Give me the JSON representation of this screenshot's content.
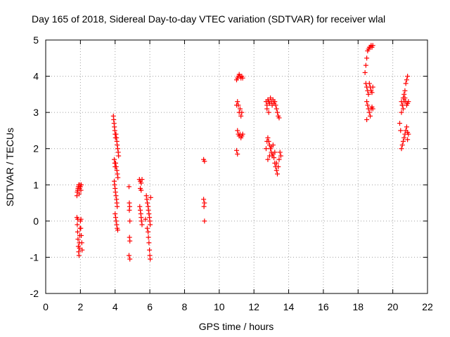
{
  "chart_data": {
    "type": "scatter",
    "title": "Day 165 of 2018, Sidereal Day-to-day VTEC variation (SDTVAR) for receiver wlal",
    "xlabel": "GPS time / hours",
    "ylabel": "SDTVAR / TECUs",
    "xlim": [
      0,
      22
    ],
    "ylim": [
      -2,
      5
    ],
    "xticks": [
      "0",
      "2",
      "4",
      "6",
      "8",
      "10",
      "12",
      "14",
      "16",
      "18",
      "20",
      "22"
    ],
    "yticks": [
      "-2",
      "-1",
      "0",
      "1",
      "2",
      "3",
      "4",
      "5"
    ],
    "grid": true,
    "marker": "+",
    "colors": {
      "points": "#ff0000",
      "grid": "#a0a0a0",
      "axes": "#000000"
    },
    "series": [
      {
        "name": "SDTVAR",
        "points": [
          [
            1.8,
            0.7
          ],
          [
            1.82,
            0.8
          ],
          [
            1.84,
            0.85
          ],
          [
            1.86,
            0.9
          ],
          [
            1.88,
            0.95
          ],
          [
            1.9,
            1.0
          ],
          [
            1.93,
            0.75
          ],
          [
            1.95,
            0.9
          ],
          [
            1.97,
            1.0
          ],
          [
            2.0,
            0.95
          ],
          [
            2.03,
            0.85
          ],
          [
            2.05,
            1.0
          ],
          [
            1.8,
            0.1
          ],
          [
            1.82,
            -0.1
          ],
          [
            1.84,
            -0.3
          ],
          [
            1.86,
            -0.5
          ],
          [
            1.88,
            -0.7
          ],
          [
            1.9,
            -0.85
          ],
          [
            1.92,
            -0.95
          ],
          [
            1.94,
            -0.6
          ],
          [
            1.96,
            -0.4
          ],
          [
            1.98,
            -0.2
          ],
          [
            2.0,
            0.0
          ],
          [
            2.02,
            -0.2
          ],
          [
            2.05,
            -0.4
          ],
          [
            2.08,
            -0.6
          ],
          [
            2.1,
            -0.8
          ],
          [
            1.85,
            0.05
          ],
          [
            1.95,
            -0.75
          ],
          [
            2.03,
            0.05
          ],
          [
            3.9,
            2.9
          ],
          [
            3.92,
            2.8
          ],
          [
            3.94,
            2.7
          ],
          [
            3.96,
            2.6
          ],
          [
            3.98,
            2.5
          ],
          [
            4.0,
            2.4
          ],
          [
            4.02,
            2.3
          ],
          [
            4.05,
            2.4
          ],
          [
            4.08,
            2.3
          ],
          [
            4.1,
            2.2
          ],
          [
            4.12,
            2.1
          ],
          [
            4.15,
            2.0
          ],
          [
            4.18,
            1.9
          ],
          [
            4.2,
            1.8
          ],
          [
            3.95,
            1.7
          ],
          [
            3.98,
            1.6
          ],
          [
            4.0,
            1.5
          ],
          [
            4.03,
            1.6
          ],
          [
            4.06,
            1.5
          ],
          [
            4.1,
            1.4
          ],
          [
            4.13,
            1.3
          ],
          [
            4.16,
            1.2
          ],
          [
            3.95,
            1.1
          ],
          [
            3.97,
            1.0
          ],
          [
            4.0,
            0.9
          ],
          [
            4.02,
            0.8
          ],
          [
            4.05,
            0.7
          ],
          [
            4.08,
            0.6
          ],
          [
            4.1,
            0.5
          ],
          [
            4.12,
            0.4
          ],
          [
            4.0,
            0.2
          ],
          [
            4.03,
            0.1
          ],
          [
            4.06,
            0.0
          ],
          [
            4.09,
            -0.1
          ],
          [
            4.12,
            -0.2
          ],
          [
            4.15,
            -0.25
          ],
          [
            4.8,
            0.95
          ],
          [
            4.82,
            0.5
          ],
          [
            4.84,
            0.4
          ],
          [
            4.82,
            0.3
          ],
          [
            4.85,
            0.0
          ],
          [
            4.83,
            -0.45
          ],
          [
            4.85,
            -0.55
          ],
          [
            4.8,
            -0.95
          ],
          [
            4.85,
            -1.05
          ],
          [
            5.4,
            1.15
          ],
          [
            5.45,
            1.1
          ],
          [
            5.5,
            1.05
          ],
          [
            5.55,
            1.15
          ],
          [
            5.45,
            0.9
          ],
          [
            5.5,
            0.85
          ],
          [
            5.42,
            0.4
          ],
          [
            5.45,
            0.3
          ],
          [
            5.48,
            0.2
          ],
          [
            5.5,
            0.1
          ],
          [
            5.52,
            0.0
          ],
          [
            5.55,
            -0.1
          ],
          [
            5.8,
            0.7
          ],
          [
            5.83,
            0.6
          ],
          [
            5.86,
            0.5
          ],
          [
            5.9,
            0.4
          ],
          [
            5.92,
            0.3
          ],
          [
            5.95,
            0.2
          ],
          [
            5.98,
            0.1
          ],
          [
            6.0,
            0.0
          ],
          [
            6.02,
            -0.1
          ],
          [
            5.85,
            -0.2
          ],
          [
            5.9,
            -0.3
          ],
          [
            5.92,
            -0.45
          ],
          [
            5.95,
            -0.6
          ],
          [
            5.98,
            -0.8
          ],
          [
            6.0,
            -0.95
          ],
          [
            6.02,
            -1.05
          ],
          [
            6.05,
            0.65
          ],
          [
            5.75,
            0.05
          ],
          [
            9.1,
            1.7
          ],
          [
            9.15,
            1.65
          ],
          [
            9.1,
            0.6
          ],
          [
            9.15,
            0.5
          ],
          [
            9.12,
            0.4
          ],
          [
            9.15,
            0.0
          ],
          [
            11.0,
            3.9
          ],
          [
            11.05,
            3.95
          ],
          [
            11.1,
            4.0
          ],
          [
            11.15,
            4.05
          ],
          [
            11.2,
            4.0
          ],
          [
            11.25,
            3.95
          ],
          [
            11.3,
            4.0
          ],
          [
            11.35,
            3.95
          ],
          [
            11.0,
            3.2
          ],
          [
            11.05,
            3.3
          ],
          [
            11.1,
            3.2
          ],
          [
            11.15,
            3.0
          ],
          [
            11.2,
            3.1
          ],
          [
            11.25,
            2.9
          ],
          [
            11.3,
            3.0
          ],
          [
            11.05,
            2.5
          ],
          [
            11.1,
            2.4
          ],
          [
            11.15,
            2.35
          ],
          [
            11.2,
            2.4
          ],
          [
            11.25,
            2.3
          ],
          [
            11.3,
            2.35
          ],
          [
            11.35,
            2.4
          ],
          [
            11.0,
            1.95
          ],
          [
            11.05,
            1.85
          ],
          [
            12.7,
            3.3
          ],
          [
            12.75,
            3.2
          ],
          [
            12.8,
            3.35
          ],
          [
            12.85,
            3.3
          ],
          [
            12.9,
            3.25
          ],
          [
            12.95,
            3.4
          ],
          [
            13.0,
            3.3
          ],
          [
            13.05,
            3.2
          ],
          [
            13.1,
            3.35
          ],
          [
            13.15,
            3.25
          ],
          [
            13.2,
            3.3
          ],
          [
            13.25,
            3.2
          ],
          [
            13.3,
            3.1
          ],
          [
            13.35,
            3.0
          ],
          [
            13.4,
            2.9
          ],
          [
            13.45,
            2.85
          ],
          [
            12.75,
            3.1
          ],
          [
            12.85,
            3.0
          ],
          [
            12.7,
            2.0
          ],
          [
            12.75,
            2.2
          ],
          [
            12.8,
            2.3
          ],
          [
            12.85,
            2.2
          ],
          [
            12.9,
            2.1
          ],
          [
            12.95,
            2.0
          ],
          [
            13.0,
            1.9
          ],
          [
            13.05,
            1.8
          ],
          [
            13.1,
            1.85
          ],
          [
            13.15,
            1.75
          ],
          [
            13.2,
            1.6
          ],
          [
            13.25,
            1.5
          ],
          [
            13.3,
            1.4
          ],
          [
            13.35,
            1.3
          ],
          [
            13.4,
            1.5
          ],
          [
            13.45,
            1.7
          ],
          [
            13.5,
            1.9
          ],
          [
            13.55,
            1.8
          ],
          [
            12.8,
            1.7
          ],
          [
            12.9,
            1.8
          ],
          [
            13.0,
            2.05
          ],
          [
            13.1,
            2.1
          ],
          [
            13.2,
            1.9
          ],
          [
            13.3,
            1.6
          ],
          [
            18.4,
            4.1
          ],
          [
            18.45,
            4.3
          ],
          [
            18.5,
            4.5
          ],
          [
            18.55,
            4.7
          ],
          [
            18.6,
            4.75
          ],
          [
            18.65,
            4.8
          ],
          [
            18.7,
            4.8
          ],
          [
            18.75,
            4.85
          ],
          [
            18.8,
            4.8
          ],
          [
            18.85,
            4.85
          ],
          [
            18.45,
            3.8
          ],
          [
            18.5,
            3.7
          ],
          [
            18.55,
            3.6
          ],
          [
            18.6,
            3.5
          ],
          [
            18.65,
            3.8
          ],
          [
            18.7,
            3.7
          ],
          [
            18.75,
            3.6
          ],
          [
            18.8,
            3.55
          ],
          [
            18.85,
            3.7
          ],
          [
            18.5,
            3.3
          ],
          [
            18.55,
            3.2
          ],
          [
            18.6,
            3.1
          ],
          [
            18.65,
            3.0
          ],
          [
            18.7,
            2.9
          ],
          [
            18.5,
            2.8
          ],
          [
            18.75,
            3.1
          ],
          [
            18.8,
            3.15
          ],
          [
            18.85,
            3.1
          ],
          [
            20.4,
            2.7
          ],
          [
            20.45,
            2.5
          ],
          [
            20.5,
            3.0
          ],
          [
            20.55,
            3.2
          ],
          [
            20.6,
            3.4
          ],
          [
            20.65,
            3.5
          ],
          [
            20.7,
            3.6
          ],
          [
            20.75,
            3.8
          ],
          [
            20.8,
            3.9
          ],
          [
            20.85,
            4.0
          ],
          [
            20.5,
            3.3
          ],
          [
            20.55,
            3.2
          ],
          [
            20.6,
            3.1
          ],
          [
            20.65,
            3.3
          ],
          [
            20.7,
            3.4
          ],
          [
            20.75,
            3.3
          ],
          [
            20.8,
            3.2
          ],
          [
            20.85,
            3.25
          ],
          [
            20.9,
            3.3
          ],
          [
            20.5,
            2.0
          ],
          [
            20.55,
            2.1
          ],
          [
            20.6,
            2.2
          ],
          [
            20.65,
            2.3
          ],
          [
            20.7,
            2.4
          ],
          [
            20.75,
            2.5
          ],
          [
            20.8,
            2.6
          ],
          [
            20.85,
            2.45
          ],
          [
            20.9,
            2.4
          ],
          [
            20.85,
            2.25
          ]
        ]
      }
    ]
  }
}
